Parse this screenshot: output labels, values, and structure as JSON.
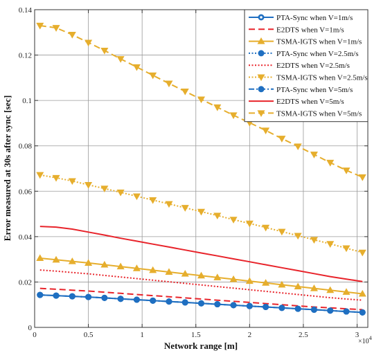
{
  "chart_data": {
    "type": "line",
    "title": "",
    "xlabel": "Network range [m]",
    "ylabel": "Error measured at 30s after sync [sec]",
    "x_multiplier": "×10",
    "x_multiplier_exp": "4",
    "xlim": [
      0,
      31000
    ],
    "ylim": [
      0,
      0.14
    ],
    "xticks": [
      0,
      5000,
      10000,
      15000,
      20000,
      25000,
      30000
    ],
    "xtick_labels": [
      "0",
      "0.5",
      "1",
      "1.5",
      "2",
      "2.5",
      "3"
    ],
    "yticks": [
      0,
      0.02,
      0.04,
      0.06,
      0.08,
      0.1,
      0.12,
      0.14
    ],
    "ytick_labels": [
      "0",
      "0.02",
      "0.04",
      "0.06",
      "0.08",
      "0.1",
      "0.12",
      "0.14"
    ],
    "grid": true,
    "legend_position": "top-right",
    "x": [
      500,
      2000,
      3500,
      5000,
      6500,
      8000,
      9500,
      11000,
      12500,
      14000,
      15500,
      17000,
      18500,
      20000,
      21500,
      23000,
      24500,
      26000,
      27500,
      29000,
      30500
    ],
    "series": [
      {
        "name": "PTA-Sync when V=1m/s",
        "color": "#1f6fc1",
        "style": "solid",
        "marker": "circle-open",
        "values": [
          0.0143,
          0.014,
          0.0137,
          0.0134,
          0.013,
          0.0126,
          0.0122,
          0.0118,
          0.0114,
          0.011,
          0.0106,
          0.0102,
          0.0098,
          0.0094,
          0.009,
          0.0086,
          0.0082,
          0.0078,
          0.0074,
          0.007,
          0.0066
        ]
      },
      {
        "name": "E2DTS when V=1m/s",
        "color": "#e8232a",
        "style": "dashed",
        "marker": "none",
        "values": [
          0.0172,
          0.0168,
          0.0164,
          0.016,
          0.0155,
          0.015,
          0.0145,
          0.014,
          0.0135,
          0.013,
          0.0125,
          0.012,
          0.0115,
          0.011,
          0.0105,
          0.01,
          0.0095,
          0.009,
          0.0086,
          0.0082,
          0.0078
        ]
      },
      {
        "name": "TSMA-IGTS when V=1m/s",
        "color": "#e6ae2d",
        "style": "solid",
        "marker": "triangle-up",
        "values": [
          0.0305,
          0.0298,
          0.0291,
          0.0284,
          0.0276,
          0.0268,
          0.026,
          0.0252,
          0.0244,
          0.0236,
          0.0228,
          0.022,
          0.0212,
          0.0204,
          0.0196,
          0.0188,
          0.018,
          0.0172,
          0.0164,
          0.0156,
          0.0148
        ]
      },
      {
        "name": "PTA-Sync when V=2.5m/s",
        "color": "#1f6fc1",
        "style": "dotted",
        "marker": "circle",
        "values": [
          0.0143,
          0.014,
          0.0137,
          0.0134,
          0.013,
          0.0126,
          0.0122,
          0.0118,
          0.0114,
          0.011,
          0.0106,
          0.0102,
          0.0098,
          0.0094,
          0.009,
          0.0086,
          0.0082,
          0.0078,
          0.0074,
          0.007,
          0.0066
        ]
      },
      {
        "name": "E2DTS when V=2.5m/s",
        "color": "#e8232a",
        "style": "dotted",
        "marker": "none",
        "values": [
          0.0253,
          0.0248,
          0.0242,
          0.0236,
          0.0229,
          0.0222,
          0.0215,
          0.0208,
          0.0201,
          0.0194,
          0.0187,
          0.018,
          0.0173,
          0.0166,
          0.0159,
          0.0152,
          0.0145,
          0.0138,
          0.0131,
          0.0125,
          0.012
        ]
      },
      {
        "name": "TSMA-IGTS when V=2.5m/s",
        "color": "#e6ae2d",
        "style": "dotted",
        "marker": "triangle-down",
        "values": [
          0.0672,
          0.0659,
          0.0645,
          0.0628,
          0.0612,
          0.0595,
          0.0578,
          0.0561,
          0.0544,
          0.0527,
          0.051,
          0.0493,
          0.0475,
          0.0458,
          0.044,
          0.0422,
          0.0404,
          0.0386,
          0.0368,
          0.0349,
          0.033
        ]
      },
      {
        "name": "PTA-Sync when V=5m/s",
        "color": "#1f6fc1",
        "style": "dashdot",
        "marker": "circle",
        "values": [
          0.0143,
          0.014,
          0.0137,
          0.0134,
          0.013,
          0.0126,
          0.0122,
          0.0118,
          0.0114,
          0.011,
          0.0106,
          0.0102,
          0.0098,
          0.0094,
          0.009,
          0.0086,
          0.0082,
          0.0078,
          0.0074,
          0.007,
          0.0066
        ]
      },
      {
        "name": "E2DTS when V=5m/s",
        "color": "#e8232a",
        "style": "solid",
        "marker": "none",
        "values": [
          0.0445,
          0.0442,
          0.0433,
          0.042,
          0.0407,
          0.0393,
          0.038,
          0.0367,
          0.0354,
          0.0341,
          0.0328,
          0.0315,
          0.0302,
          0.0289,
          0.0276,
          0.0263,
          0.025,
          0.0237,
          0.0224,
          0.0213,
          0.0202
        ]
      },
      {
        "name": "TSMA-IGTS when V=5m/s",
        "color": "#e6ae2d",
        "style": "dashed",
        "marker": "triangle-down",
        "values": [
          0.133,
          0.132,
          0.129,
          0.1255,
          0.122,
          0.1183,
          0.1147,
          0.1111,
          0.1075,
          0.104,
          0.1005,
          0.097,
          0.0935,
          0.0902,
          0.0868,
          0.0832,
          0.0798,
          0.0762,
          0.0726,
          0.0692,
          0.0662
        ]
      }
    ]
  }
}
